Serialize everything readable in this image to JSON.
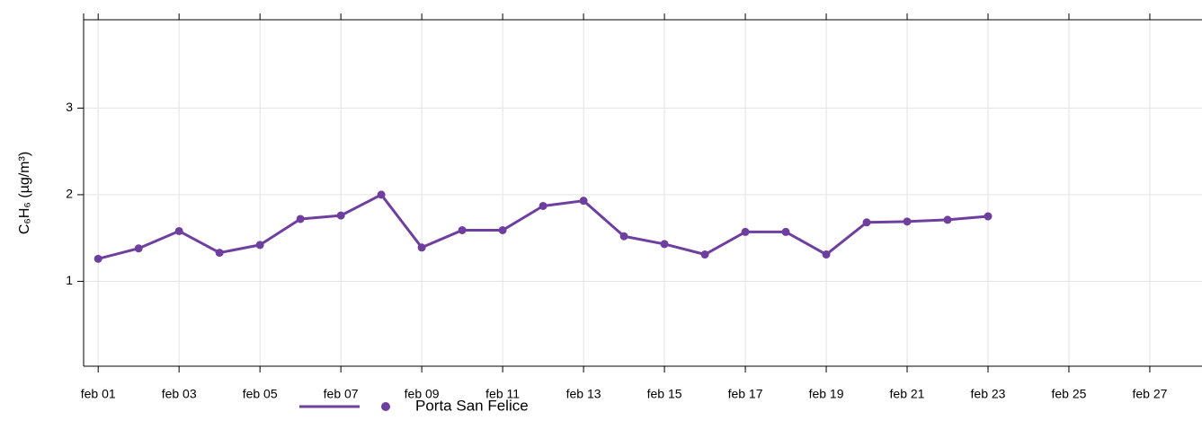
{
  "chart_data": {
    "type": "line",
    "ylabel": "C₆H₆ (µg/m³)",
    "x": [
      1,
      2,
      3,
      4,
      5,
      6,
      7,
      8,
      9,
      10,
      11,
      12,
      13,
      14,
      15,
      16,
      17,
      18,
      19,
      20,
      21,
      22,
      23
    ],
    "series": [
      {
        "name": "Porta San Felice",
        "color": "#6f3f9f",
        "values": [
          1.26,
          1.38,
          1.58,
          1.33,
          1.42,
          1.72,
          1.76,
          2.0,
          1.39,
          1.59,
          1.59,
          1.87,
          1.93,
          1.52,
          1.43,
          1.31,
          1.57,
          1.57,
          1.31,
          1.68,
          1.69,
          1.71,
          1.75
        ]
      }
    ],
    "xlim": [
      0.64,
      28.29
    ],
    "xticks": [
      {
        "value": 1,
        "label": "feb 01"
      },
      {
        "value": 3,
        "label": "feb 03"
      },
      {
        "value": 5,
        "label": "feb 05"
      },
      {
        "value": 7,
        "label": "feb 07"
      },
      {
        "value": 9,
        "label": "feb 09"
      },
      {
        "value": 11,
        "label": "feb 11"
      },
      {
        "value": 13,
        "label": "feb 13"
      },
      {
        "value": 15,
        "label": "feb 15"
      },
      {
        "value": 17,
        "label": "feb 17"
      },
      {
        "value": 19,
        "label": "feb 19"
      },
      {
        "value": 21,
        "label": "feb 21"
      },
      {
        "value": 23,
        "label": "feb 23"
      },
      {
        "value": 25,
        "label": "feb 25"
      },
      {
        "value": 27,
        "label": "feb 27"
      }
    ],
    "ylim": [
      0.02,
      4.02
    ],
    "yticks": [
      1,
      2,
      3
    ],
    "grid": true,
    "legend": "bottom"
  }
}
